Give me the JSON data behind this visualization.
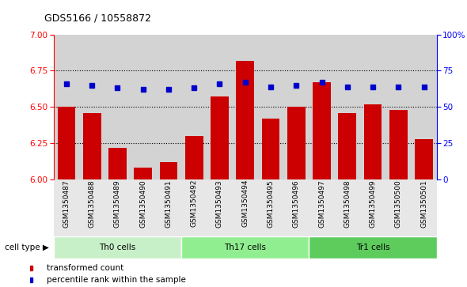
{
  "title": "GDS5166 / 10558872",
  "samples": [
    "GSM1350487",
    "GSM1350488",
    "GSM1350489",
    "GSM1350490",
    "GSM1350491",
    "GSM1350492",
    "GSM1350493",
    "GSM1350494",
    "GSM1350495",
    "GSM1350496",
    "GSM1350497",
    "GSM1350498",
    "GSM1350499",
    "GSM1350500",
    "GSM1350501"
  ],
  "transformed_count": [
    6.5,
    6.46,
    6.22,
    6.08,
    6.12,
    6.3,
    6.57,
    6.82,
    6.42,
    6.5,
    6.67,
    6.46,
    6.52,
    6.48,
    6.28
  ],
  "percentile_rank": [
    66,
    65,
    63,
    62,
    62,
    63,
    66,
    67,
    64,
    65,
    67,
    64,
    64,
    64,
    64
  ],
  "cell_types": [
    {
      "label": "Th0 cells",
      "start": 0,
      "end": 5,
      "color": "#c8f0c8"
    },
    {
      "label": "Th17 cells",
      "start": 5,
      "end": 10,
      "color": "#90ee90"
    },
    {
      "label": "Tr1 cells",
      "start": 10,
      "end": 15,
      "color": "#5dcc5d"
    }
  ],
  "ylim_left": [
    6.0,
    7.0
  ],
  "ylim_right": [
    0,
    100
  ],
  "yticks_left": [
    6.0,
    6.25,
    6.5,
    6.75,
    7.0
  ],
  "yticks_right": [
    0,
    25,
    50,
    75,
    100
  ],
  "bar_color": "#cc0000",
  "dot_color": "#0000cc",
  "bg_color": "#d3d3d3",
  "plot_bg": "#f0f0f0",
  "legend_items": [
    {
      "label": "transformed count",
      "color": "#cc0000"
    },
    {
      "label": "percentile rank within the sample",
      "color": "#0000cc"
    }
  ],
  "grid_ticks": [
    6.25,
    6.5,
    6.75
  ]
}
